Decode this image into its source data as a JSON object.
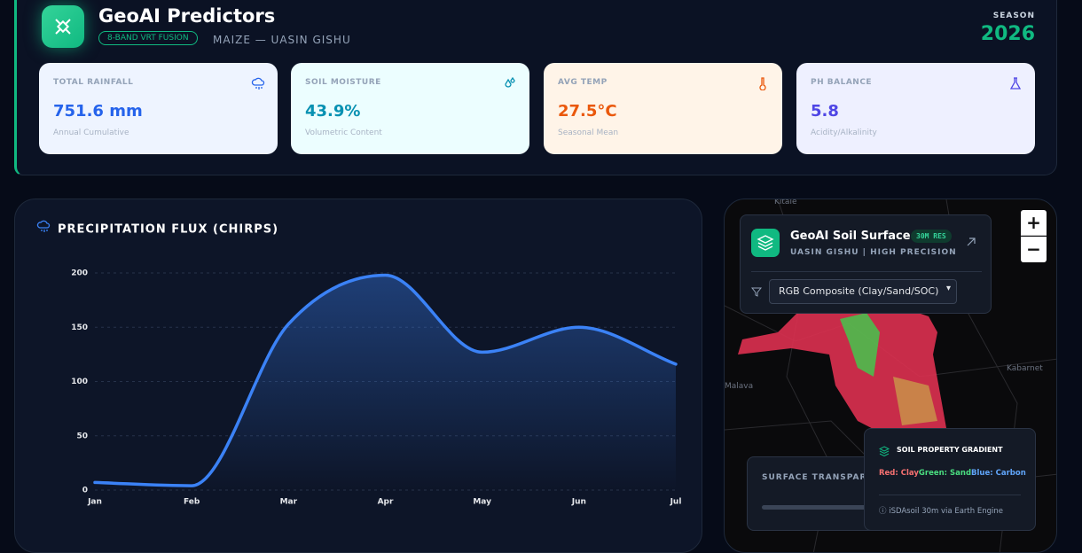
{
  "header": {
    "title": "GeoAI Predictors",
    "badge": "8-BAND VRT FUSION",
    "subtitle": "MAIZE — UASIN GISHU",
    "season_label": "SEASON",
    "season": "2026"
  },
  "stats": [
    {
      "label": "TOTAL RAINFALL",
      "value": "751.6 mm",
      "note": "Annual Cumulative"
    },
    {
      "label": "SOIL MOISTURE",
      "value": "43.9%",
      "note": "Volumetric Content"
    },
    {
      "label": "AVG TEMP",
      "value": "27.5°C",
      "note": "Seasonal Mean"
    },
    {
      "label": "PH BALANCE",
      "value": "5.8",
      "note": "Acidity/Alkalinity"
    }
  ],
  "chart_data": {
    "type": "line",
    "title": "PRECIPITATION FLUX (CHIRPS)",
    "categories": [
      "Jan",
      "Feb",
      "Mar",
      "Apr",
      "May",
      "Jun",
      "Jul"
    ],
    "values": [
      7,
      4,
      153,
      198,
      127,
      150,
      116
    ],
    "color": "#3b82f6",
    "area": true,
    "ylim": [
      0,
      200
    ],
    "yticks": [
      0,
      50,
      100,
      150,
      200
    ],
    "grid": true
  },
  "map": {
    "places": [
      "Kitale",
      "Malava",
      "Kabarnet"
    ],
    "zoom_in": "+",
    "zoom_out": "−",
    "panel": {
      "title": "GeoAI Soil Surface",
      "badge": "30M RES",
      "subtitle": "UASIN GISHU | HIGH PRECISION",
      "select": "RGB Composite (Clay/Sand/SOC)"
    },
    "transparency": "SURFACE TRANSPARENCY",
    "legend": {
      "title": "SOIL PROPERTY GRADIENT",
      "red": "Red: Clay",
      "green": "Green: Sand",
      "blue": "Blue: Carbon",
      "source": "iSDAsoil 30m via Earth Engine"
    }
  }
}
